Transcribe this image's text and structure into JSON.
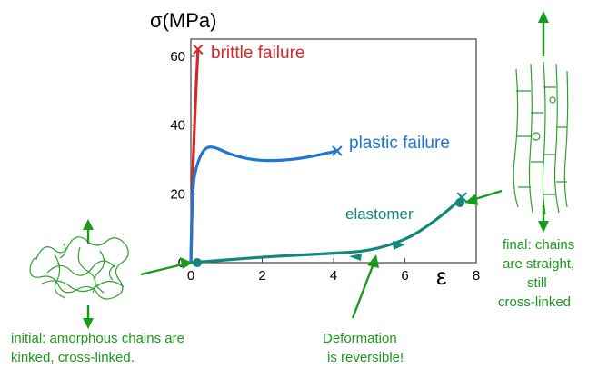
{
  "chart_data": {
    "type": "line",
    "title": "",
    "ylabel": "σ(MPa)",
    "xlabel": "ε",
    "xlim": [
      0,
      8
    ],
    "ylim": [
      0,
      65
    ],
    "x_ticks": [
      "0",
      "2",
      "4",
      "6",
      "8"
    ],
    "y_ticks": [
      "0",
      "20",
      "40",
      "60"
    ],
    "series": [
      {
        "name": "brittle failure",
        "x": [
          0,
          0.05,
          0.12,
          0.2
        ],
        "y": [
          0,
          25,
          45,
          62
        ]
      },
      {
        "name": "plastic failure",
        "x": [
          0,
          0.05,
          0.15,
          0.35,
          0.6,
          1.2,
          2.0,
          3.0,
          4.1
        ],
        "y": [
          0,
          22,
          28,
          33,
          34,
          31,
          29.5,
          30,
          32.5
        ]
      },
      {
        "name": "elastomer",
        "x": [
          0,
          1,
          2,
          3,
          4,
          5,
          6,
          6.7,
          7.3,
          7.6
        ],
        "y": [
          0,
          0.8,
          1.6,
          2.2,
          2.7,
          3.4,
          6.5,
          11,
          16,
          19
        ]
      }
    ],
    "annotations": [
      "initial:  amorphous chains are",
      "kinked, cross-linked.",
      "Deformation",
      "is reversible!",
      "final: chains",
      "are straight,",
      "still",
      "cross-linked"
    ],
    "colors": {
      "brittle": "#d62728",
      "plastic": "#1f77d4",
      "elastomer": "#13877a",
      "notes": "#1a9a1a"
    }
  }
}
